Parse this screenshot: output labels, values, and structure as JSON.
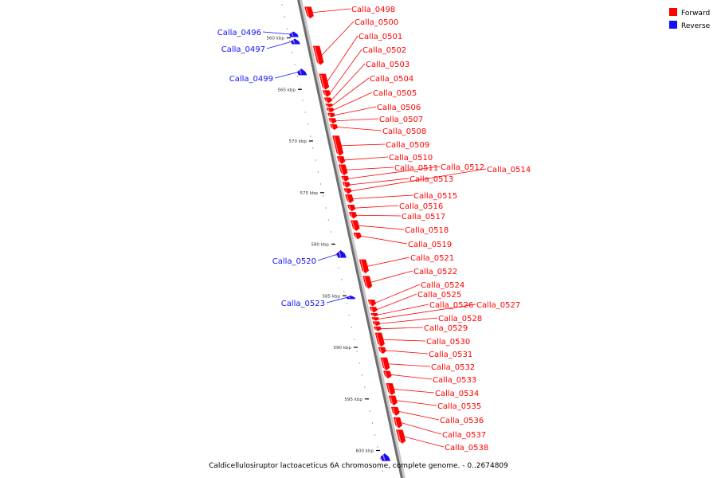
{
  "title": "Caldicellulosiruptor lactoaceticus 6A chromosome, complete genome. - 0..2674809",
  "legend": {
    "forward": {
      "label": "Forward",
      "color": "#ff0000"
    },
    "reverse": {
      "label": "Reverse",
      "color": "#1010ff"
    }
  },
  "axis": {
    "unit": "kbp",
    "range_kbp": [
      557,
      601
    ],
    "ticks": [
      {
        "label": "560 kbp",
        "kbp": 560
      },
      {
        "label": "565 kbp",
        "kbp": 565
      },
      {
        "label": "570 kbp",
        "kbp": 570
      },
      {
        "label": "575 kbp",
        "kbp": 575
      },
      {
        "label": "580 kbp",
        "kbp": 580
      },
      {
        "label": "585 kbp",
        "kbp": 585
      },
      {
        "label": "590 kbp",
        "kbp": 590
      },
      {
        "label": "595 kbp",
        "kbp": 595
      },
      {
        "label": "600 kbp",
        "kbp": 600
      }
    ]
  },
  "genes": [
    {
      "name": "Calla_0496",
      "strand": "reverse",
      "start": 559.4,
      "end": 559.9
    },
    {
      "name": "Calla_0497",
      "strand": "reverse",
      "start": 560.1,
      "end": 560.6
    },
    {
      "name": "Calla_0498",
      "strand": "forward",
      "start": 557.0,
      "end": 558.1
    },
    {
      "name": "Calla_0500",
      "strand": "forward",
      "start": 560.8,
      "end": 562.6
    },
    {
      "name": "Calla_0499",
      "strand": "reverse",
      "start": 563.0,
      "end": 563.6
    },
    {
      "name": "Calla_0501",
      "strand": "forward",
      "start": 563.5,
      "end": 565.0
    },
    {
      "name": "Calla_0502",
      "strand": "forward",
      "start": 565.1,
      "end": 565.7
    },
    {
      "name": "Calla_0503",
      "strand": "forward",
      "start": 565.8,
      "end": 566.3
    },
    {
      "name": "Calla_0504",
      "strand": "forward",
      "start": 566.4,
      "end": 566.7
    },
    {
      "name": "Calla_0505",
      "strand": "forward",
      "start": 566.8,
      "end": 567.2
    },
    {
      "name": "Calla_0506",
      "strand": "forward",
      "start": 567.3,
      "end": 567.7
    },
    {
      "name": "Calla_0507",
      "strand": "forward",
      "start": 567.8,
      "end": 568.3
    },
    {
      "name": "Calla_0508",
      "strand": "forward",
      "start": 568.4,
      "end": 568.9
    },
    {
      "name": "Calla_0509",
      "strand": "forward",
      "start": 569.5,
      "end": 571.4
    },
    {
      "name": "Calla_0510",
      "strand": "forward",
      "start": 571.5,
      "end": 572.2
    },
    {
      "name": "Calla_0511",
      "strand": "forward",
      "start": 572.3,
      "end": 573.3
    },
    {
      "name": "Calla_0512",
      "strand": "forward",
      "start": 573.4,
      "end": 573.9
    },
    {
      "name": "Calla_0513",
      "strand": "forward",
      "start": 574.0,
      "end": 574.5
    },
    {
      "name": "Calla_0514",
      "strand": "forward",
      "start": 574.6,
      "end": 575.1
    },
    {
      "name": "Calla_0515",
      "strand": "forward",
      "start": 575.2,
      "end": 576.0
    },
    {
      "name": "Calla_0516",
      "strand": "forward",
      "start": 576.2,
      "end": 576.8
    },
    {
      "name": "Calla_0517",
      "strand": "forward",
      "start": 576.9,
      "end": 577.5
    },
    {
      "name": "Calla_0518",
      "strand": "forward",
      "start": 577.7,
      "end": 578.7
    },
    {
      "name": "Calla_0519",
      "strand": "forward",
      "start": 578.9,
      "end": 579.5
    },
    {
      "name": "Calla_0520",
      "strand": "reverse",
      "start": 580.6,
      "end": 581.3
    },
    {
      "name": "Calla_0521",
      "strand": "forward",
      "start": 581.5,
      "end": 582.8
    },
    {
      "name": "Calla_0522",
      "strand": "forward",
      "start": 583.1,
      "end": 584.3
    },
    {
      "name": "Calla_0523",
      "strand": "reverse",
      "start": 585.0,
      "end": 585.3
    },
    {
      "name": "Calla_0524",
      "strand": "forward",
      "start": 585.4,
      "end": 586.0
    },
    {
      "name": "Calla_0525",
      "strand": "forward",
      "start": 586.1,
      "end": 586.6
    },
    {
      "name": "Calla_0526",
      "strand": "forward",
      "start": 586.7,
      "end": 587.0
    },
    {
      "name": "Calla_0527",
      "strand": "forward",
      "start": 587.1,
      "end": 587.4
    },
    {
      "name": "Calla_0528",
      "strand": "forward",
      "start": 587.5,
      "end": 587.9
    },
    {
      "name": "Calla_0529",
      "strand": "forward",
      "start": 588.0,
      "end": 588.4
    },
    {
      "name": "Calla_0530",
      "strand": "forward",
      "start": 588.6,
      "end": 589.9
    },
    {
      "name": "Calla_0531",
      "strand": "forward",
      "start": 590.0,
      "end": 590.6
    },
    {
      "name": "Calla_0532",
      "strand": "forward",
      "start": 591.0,
      "end": 592.2
    },
    {
      "name": "Calla_0533",
      "strand": "forward",
      "start": 592.3,
      "end": 593.0
    },
    {
      "name": "Calla_0534",
      "strand": "forward",
      "start": 593.5,
      "end": 594.6
    },
    {
      "name": "Calla_0535",
      "strand": "forward",
      "start": 594.7,
      "end": 595.6
    },
    {
      "name": "Calla_0536",
      "strand": "forward",
      "start": 595.8,
      "end": 596.6
    },
    {
      "name": "Calla_0537",
      "strand": "forward",
      "start": 596.8,
      "end": 597.8
    },
    {
      "name": "Calla_0538",
      "strand": "forward",
      "start": 598.0,
      "end": 599.3
    },
    {
      "name": "",
      "strand": "reverse",
      "start": 600.3,
      "end": 601.0
    }
  ]
}
